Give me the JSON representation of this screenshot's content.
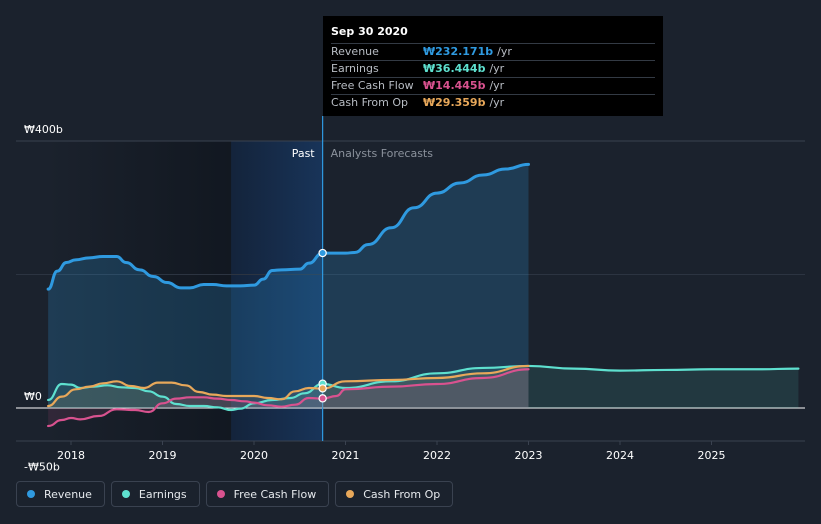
{
  "tooltip": {
    "date": "Sep 30 2020",
    "rows": [
      {
        "label": "Revenue",
        "value": "₩232.171b",
        "unit": "/yr",
        "color": "#2f9ae0"
      },
      {
        "label": "Earnings",
        "value": "₩36.444b",
        "unit": "/yr",
        "color": "#5ee0cf"
      },
      {
        "label": "Free Cash Flow",
        "value": "₩14.445b",
        "unit": "/yr",
        "color": "#d9528f"
      },
      {
        "label": "Cash From Op",
        "value": "₩29.359b",
        "unit": "/yr",
        "color": "#e8a85a"
      }
    ]
  },
  "legend": [
    {
      "label": "Revenue",
      "color": "#2f9ae0"
    },
    {
      "label": "Earnings",
      "color": "#5ee0cf"
    },
    {
      "label": "Free Cash Flow",
      "color": "#d9528f"
    },
    {
      "label": "Cash From Op",
      "color": "#e8a85a"
    }
  ],
  "chart_data": {
    "type": "line",
    "title": "",
    "y_tick_labels": [
      "₩400b",
      "₩0",
      "-₩50b"
    ],
    "x_tick_labels": [
      "2018",
      "2019",
      "2020",
      "2021",
      "2022",
      "2023",
      "2024",
      "2025"
    ],
    "ylim": [
      -50,
      400
    ],
    "xlim": [
      2017.6,
      2025.95
    ],
    "past_label": "Past",
    "forecast_label": "Analysts Forecasts",
    "past_end": 2020.75,
    "highlight_start": 2019.75,
    "series": [
      {
        "name": "Revenue",
        "color": "#2f9ae0",
        "x": [
          2017.75,
          2017.85,
          2017.95,
          2018.05,
          2018.2,
          2018.35,
          2018.5,
          2018.6,
          2018.75,
          2018.9,
          2019.05,
          2019.2,
          2019.3,
          2019.45,
          2019.55,
          2019.7,
          2019.85,
          2020.0,
          2020.1,
          2020.2,
          2020.3,
          2020.5,
          2020.6,
          2020.75,
          2020.9,
          2021.0,
          2021.1,
          2021.25,
          2021.5,
          2021.75,
          2022.0,
          2022.25,
          2022.5,
          2022.75,
          2023.0
        ],
        "values": [
          178,
          205,
          218,
          222,
          225,
          227,
          227,
          218,
          207,
          197,
          188,
          180,
          180,
          185,
          185,
          183,
          183,
          184,
          193,
          206,
          207,
          208,
          217,
          232,
          232,
          232,
          233,
          245,
          270,
          300,
          322,
          337,
          349,
          358,
          365
        ]
      },
      {
        "name": "Earnings",
        "color": "#5ee0cf",
        "x": [
          2017.75,
          2017.9,
          2018.0,
          2018.1,
          2018.25,
          2018.4,
          2018.55,
          2018.7,
          2018.85,
          2019.0,
          2019.15,
          2019.3,
          2019.45,
          2019.6,
          2019.75,
          2019.85,
          2020.0,
          2020.2,
          2020.4,
          2020.55,
          2020.75,
          2021.0,
          2021.5,
          2022.0,
          2022.5,
          2023.0,
          2023.5,
          2024.0,
          2024.5,
          2025.0,
          2025.5,
          2025.95
        ],
        "values": [
          12,
          36,
          35,
          30,
          32,
          34,
          31,
          30,
          25,
          17,
          6,
          3,
          3,
          1,
          -3,
          -1,
          7,
          12,
          15,
          22,
          36,
          30,
          40,
          52,
          60,
          63,
          59,
          56,
          57,
          58,
          58,
          59
        ]
      },
      {
        "name": "Free Cash Flow",
        "color": "#d9528f",
        "x": [
          2017.75,
          2017.9,
          2018.0,
          2018.1,
          2018.3,
          2018.5,
          2018.7,
          2018.85,
          2019.0,
          2019.15,
          2019.3,
          2019.45,
          2019.6,
          2019.75,
          2019.9,
          2020.0,
          2020.15,
          2020.3,
          2020.45,
          2020.6,
          2020.75,
          2020.9,
          2021.0,
          2021.5,
          2022.0,
          2022.5,
          2023.0
        ],
        "values": [
          -27,
          -18,
          -15,
          -17,
          -12,
          -2,
          -3,
          -6,
          7,
          14,
          16,
          16,
          14,
          12,
          10,
          8,
          4,
          2,
          5,
          15,
          14,
          18,
          28,
          32,
          36,
          45,
          58
        ]
      },
      {
        "name": "Cash From Op",
        "color": "#e8a85a",
        "x": [
          2017.75,
          2017.9,
          2018.05,
          2018.2,
          2018.35,
          2018.5,
          2018.65,
          2018.8,
          2018.95,
          2019.1,
          2019.25,
          2019.4,
          2019.55,
          2019.7,
          2019.85,
          2020.0,
          2020.15,
          2020.3,
          2020.45,
          2020.6,
          2020.75,
          2021.0,
          2021.5,
          2022.0,
          2022.5,
          2023.0
        ],
        "values": [
          3,
          17,
          28,
          32,
          37,
          40,
          33,
          30,
          38,
          38,
          34,
          24,
          20,
          18,
          18,
          18,
          15,
          13,
          25,
          30,
          29,
          40,
          42,
          45,
          52,
          63
        ]
      }
    ],
    "highlight_points": [
      {
        "series": "Revenue",
        "x": 2020.75,
        "value": 232.171
      },
      {
        "series": "Earnings",
        "x": 2020.75,
        "value": 36.444
      },
      {
        "series": "Free Cash Flow",
        "x": 2020.75,
        "value": 14.445
      },
      {
        "series": "Cash From Op",
        "x": 2020.75,
        "value": 29.359
      }
    ]
  }
}
